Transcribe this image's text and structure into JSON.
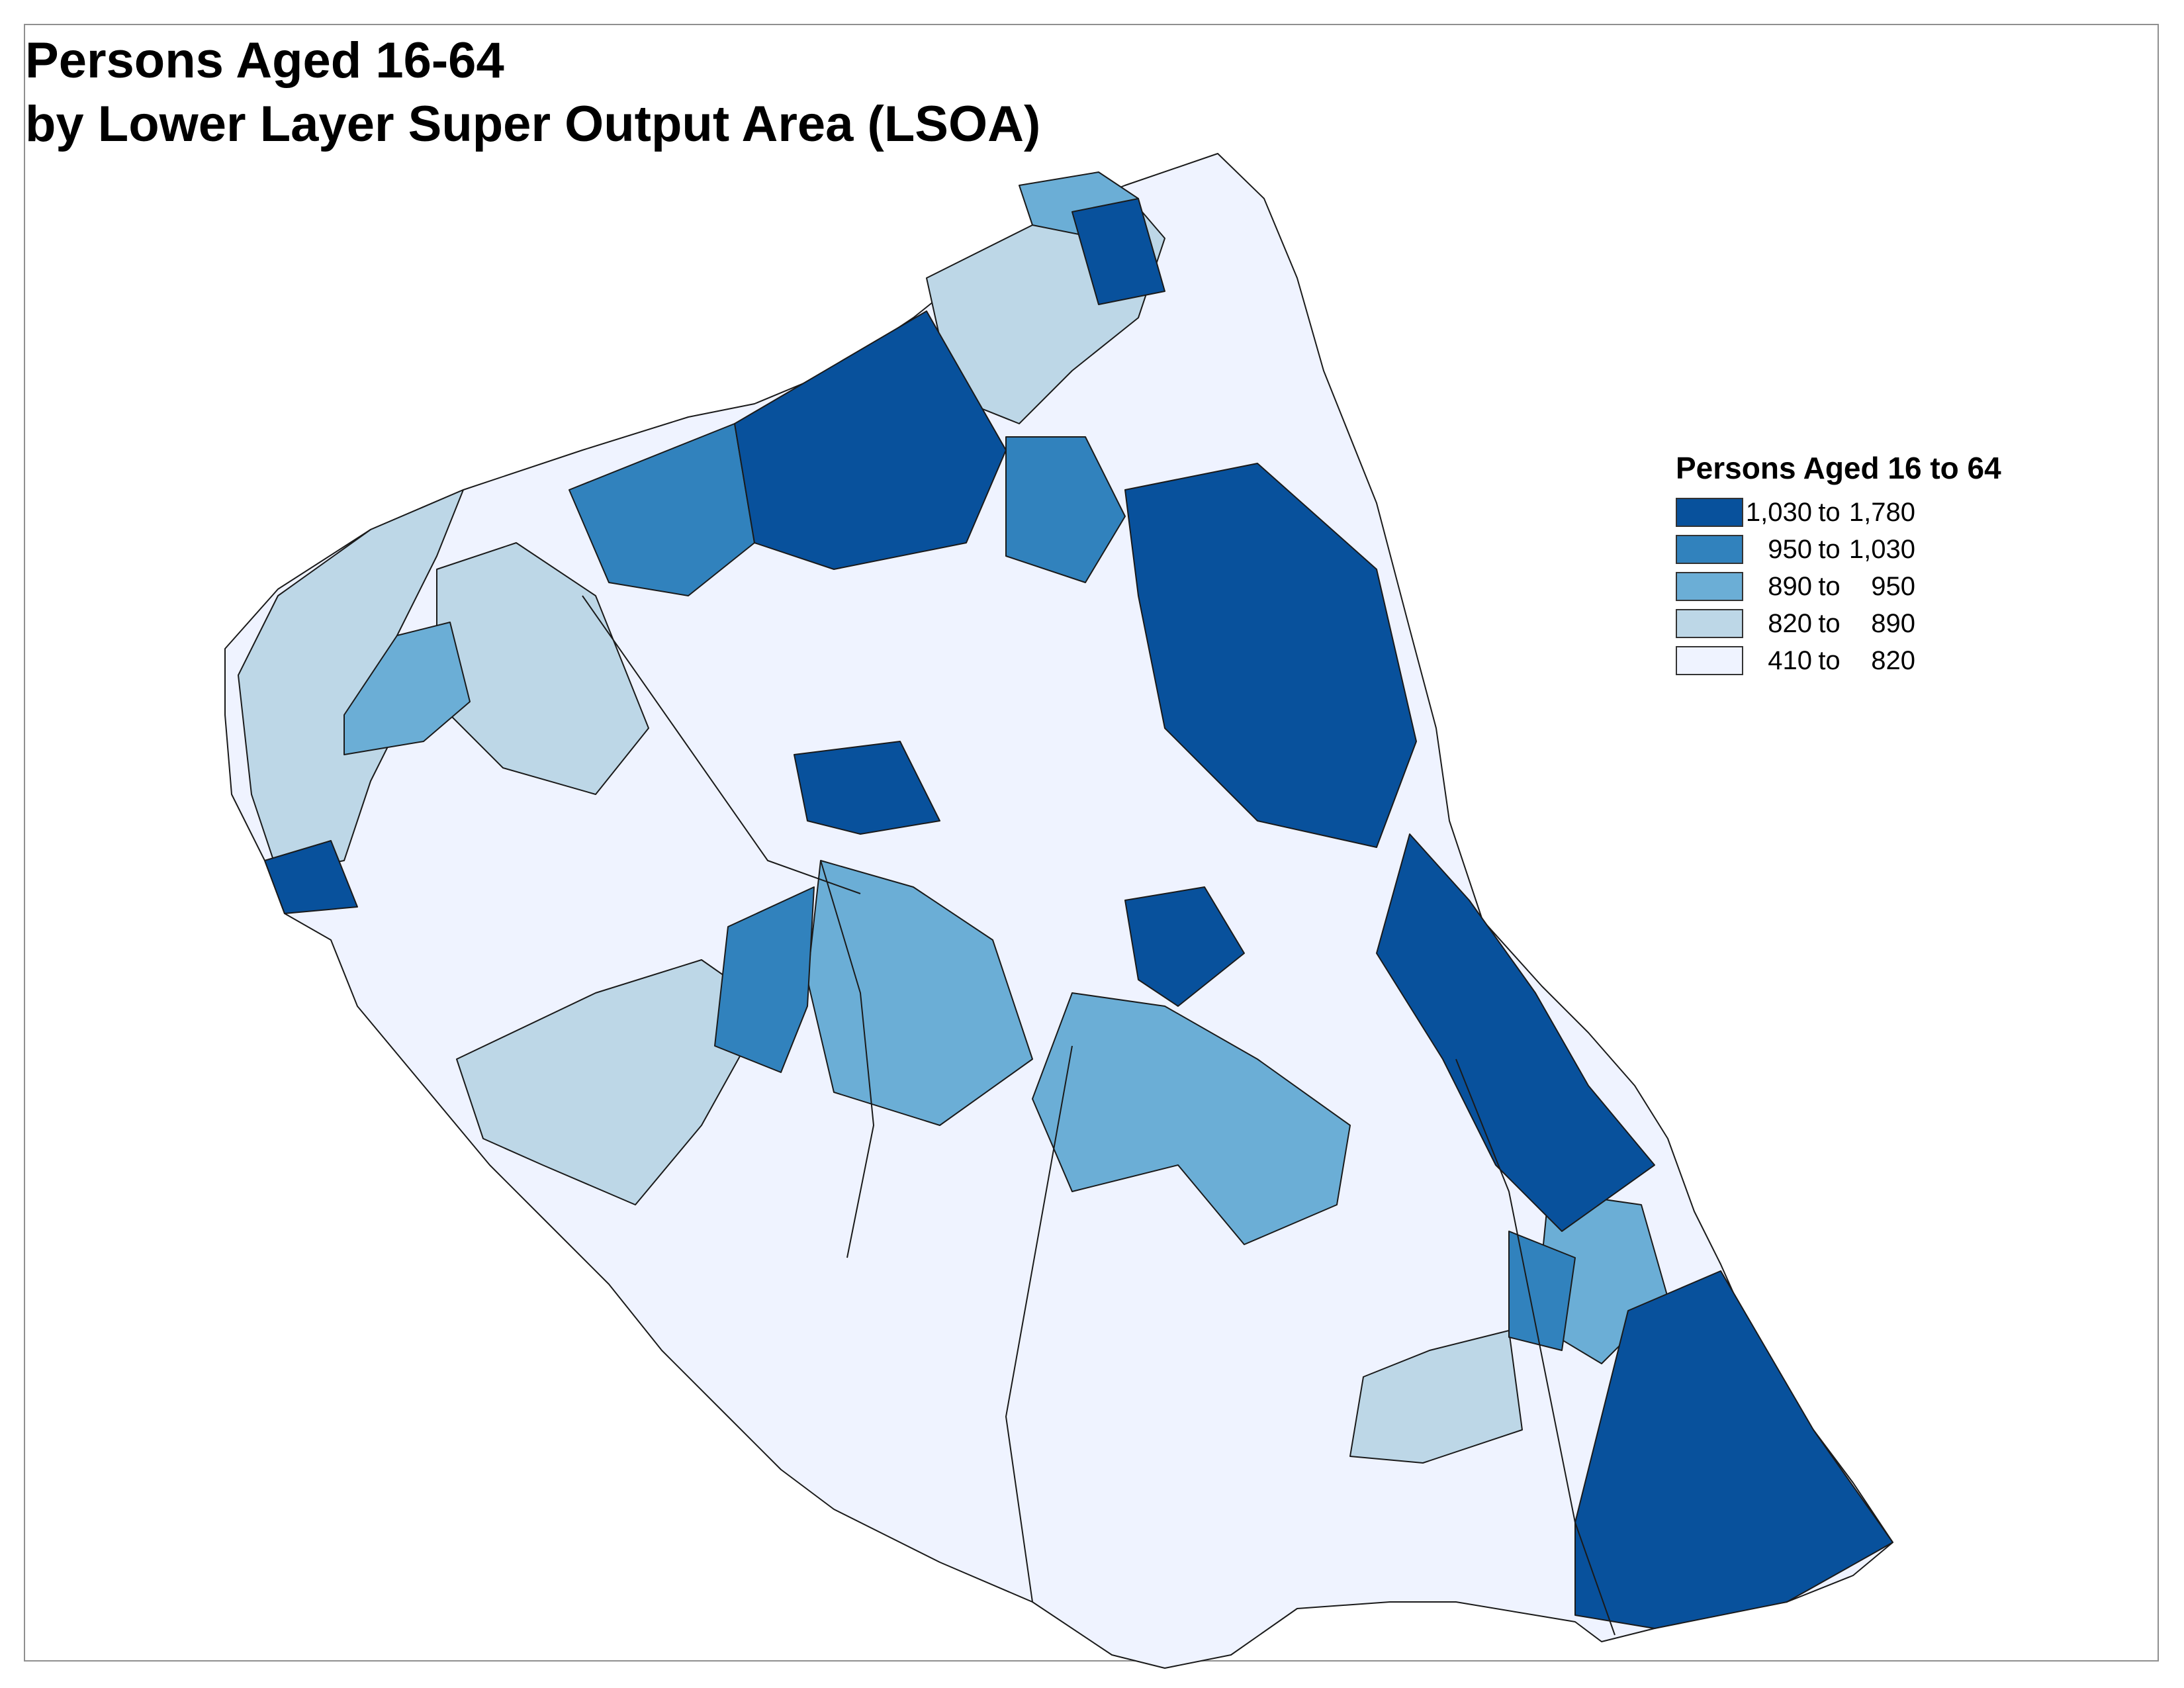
{
  "title": {
    "line1": "Persons Aged 16-64",
    "line2": "by Lower Layer Super Output Area (LSOA)"
  },
  "legend": {
    "title": "Persons Aged 16 to 64",
    "classes": [
      {
        "min": "1,030",
        "sep": "to",
        "max": "1,780",
        "color": "#08519c"
      },
      {
        "min": "950",
        "sep": "to",
        "max": "1,030",
        "color": "#3182bd"
      },
      {
        "min": "890",
        "sep": "to",
        "max": "950",
        "color": "#6baed6"
      },
      {
        "min": "820",
        "sep": "to",
        "max": "890",
        "color": "#bdd7e7"
      },
      {
        "min": "410",
        "sep": "to",
        "max": "820",
        "color": "#eff3ff"
      }
    ]
  },
  "colors": {
    "class_1": "#08519c",
    "class_2": "#3182bd",
    "class_3": "#6baed6",
    "class_4": "#bdd7e7",
    "class_5": "#eff3ff",
    "boundary": "#1a1a1a"
  }
}
